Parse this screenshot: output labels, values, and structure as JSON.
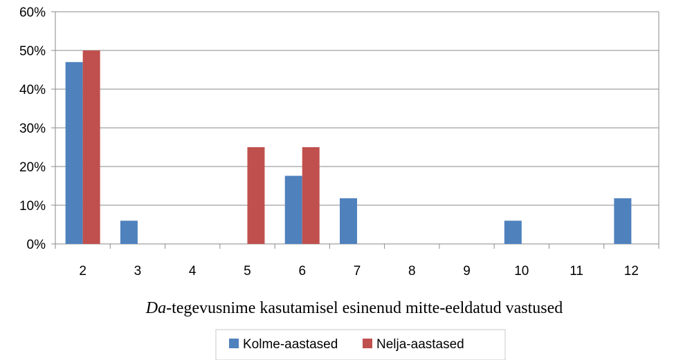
{
  "chart_data": {
    "type": "bar",
    "title": "",
    "xlabel": {
      "italic": "Da",
      "rest": "-tegevusnime kasutamisel esinenud mitte-eeldatud vastused"
    },
    "ylabel": "",
    "categories": [
      "2",
      "3",
      "4",
      "5",
      "6",
      "7",
      "8",
      "9",
      "10",
      "11",
      "12"
    ],
    "series": [
      {
        "name": "Kolme-aastased",
        "color": "#4F81BD",
        "values": [
          47,
          6,
          0,
          0,
          17.6,
          11.8,
          0,
          0,
          6,
          0,
          11.8
        ]
      },
      {
        "name": "Nelja-aastased",
        "color": "#C0504D",
        "values": [
          50,
          0,
          0,
          25,
          25,
          0,
          0,
          0,
          0,
          0,
          0
        ]
      }
    ],
    "ylim": [
      0,
      60
    ],
    "yticks": [
      "0%",
      "10%",
      "20%",
      "30%",
      "40%",
      "50%",
      "60%"
    ],
    "grid": true,
    "legend_position": "bottom"
  }
}
